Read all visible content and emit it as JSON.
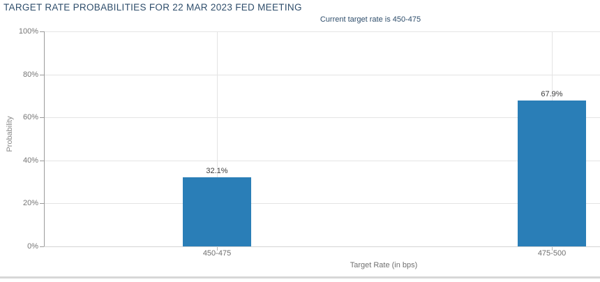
{
  "header": {
    "title": "TARGET RATE PROBABILITIES FOR 22 MAR 2023 FED MEETING",
    "subtitle": "Current target rate is 450-475"
  },
  "chart_data": {
    "type": "bar",
    "title": "TARGET RATE PROBABILITIES FOR 22 MAR 2023 FED MEETING",
    "subtitle": "Current target rate is 450-475",
    "categories": [
      "450-475",
      "475-500"
    ],
    "values": [
      32.1,
      67.9
    ],
    "value_labels": [
      "32.1%",
      "67.9%"
    ],
    "xlabel": "Target Rate (in bps)",
    "ylabel": "Probability",
    "ylim": [
      0,
      100
    ],
    "ytick_values": [
      0,
      20,
      40,
      60,
      80,
      100
    ],
    "ytick_labels": [
      "0%",
      "20%",
      "40%",
      "60%",
      "80%",
      "100%"
    ],
    "grid": true,
    "legend": "none"
  },
  "colors": {
    "bar": "#2a7eb7",
    "title_text": "#2e4d6b",
    "grid_line": "#e4e4e4",
    "y_axis_line": "#9a9a9a",
    "x_axis_line": "#d4d4d4",
    "tick_mark": "#9a9a9a",
    "x_tick_mark": "#b5b5b5",
    "axis_text": "#757575",
    "value_text": "#3b3b3b",
    "separator": "#d7d7d7"
  }
}
